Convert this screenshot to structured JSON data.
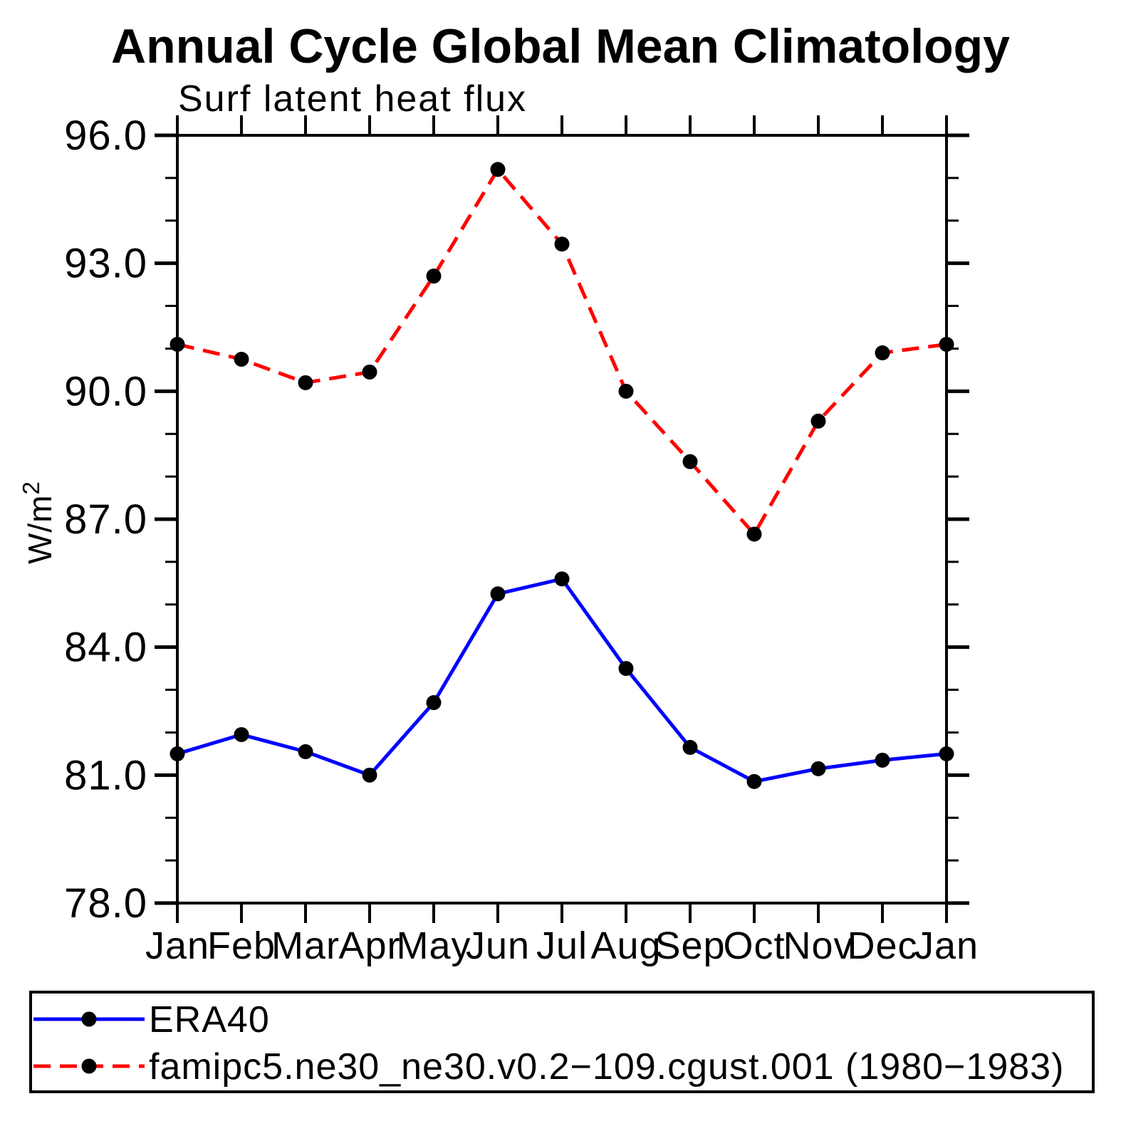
{
  "page": {
    "background": "#ffffff",
    "frame_color": "#000000"
  },
  "chart_data": {
    "type": "line",
    "title": "Annual Cycle Global Mean Climatology",
    "subtitle": "Surf latent heat flux",
    "ylabel_base": "W/m",
    "ylabel_sup": "2",
    "x_categories": [
      "Jan",
      "Feb",
      "Mar",
      "Apr",
      "May",
      "Jun",
      "Jul",
      "Aug",
      "Sep",
      "Oct",
      "Nov",
      "Dec",
      "Jan"
    ],
    "ylim": [
      78.0,
      96.0
    ],
    "y_major_ticks": [
      78.0,
      81.0,
      84.0,
      87.0,
      90.0,
      93.0,
      96.0
    ],
    "y_minor_step": 1.0,
    "grid": "off",
    "legend_position": "bottom",
    "marker": "filled-circle",
    "marker_color": "#000000",
    "series": [
      {
        "name": "ERA40",
        "color": "#0000ff",
        "style": "solid",
        "values": [
          81.5,
          81.95,
          81.55,
          81.0,
          82.7,
          85.25,
          85.6,
          83.5,
          81.65,
          80.85,
          81.15,
          81.35,
          81.5
        ]
      },
      {
        "name": "famipc5.ne30_ne30.v0.2−109.cgust.001 (1980−1983)",
        "color": "#ff0000",
        "style": "dashed",
        "values": [
          91.1,
          90.75,
          90.2,
          90.45,
          92.7,
          95.2,
          93.45,
          90.0,
          88.35,
          86.65,
          89.3,
          90.9,
          91.1
        ]
      }
    ]
  }
}
